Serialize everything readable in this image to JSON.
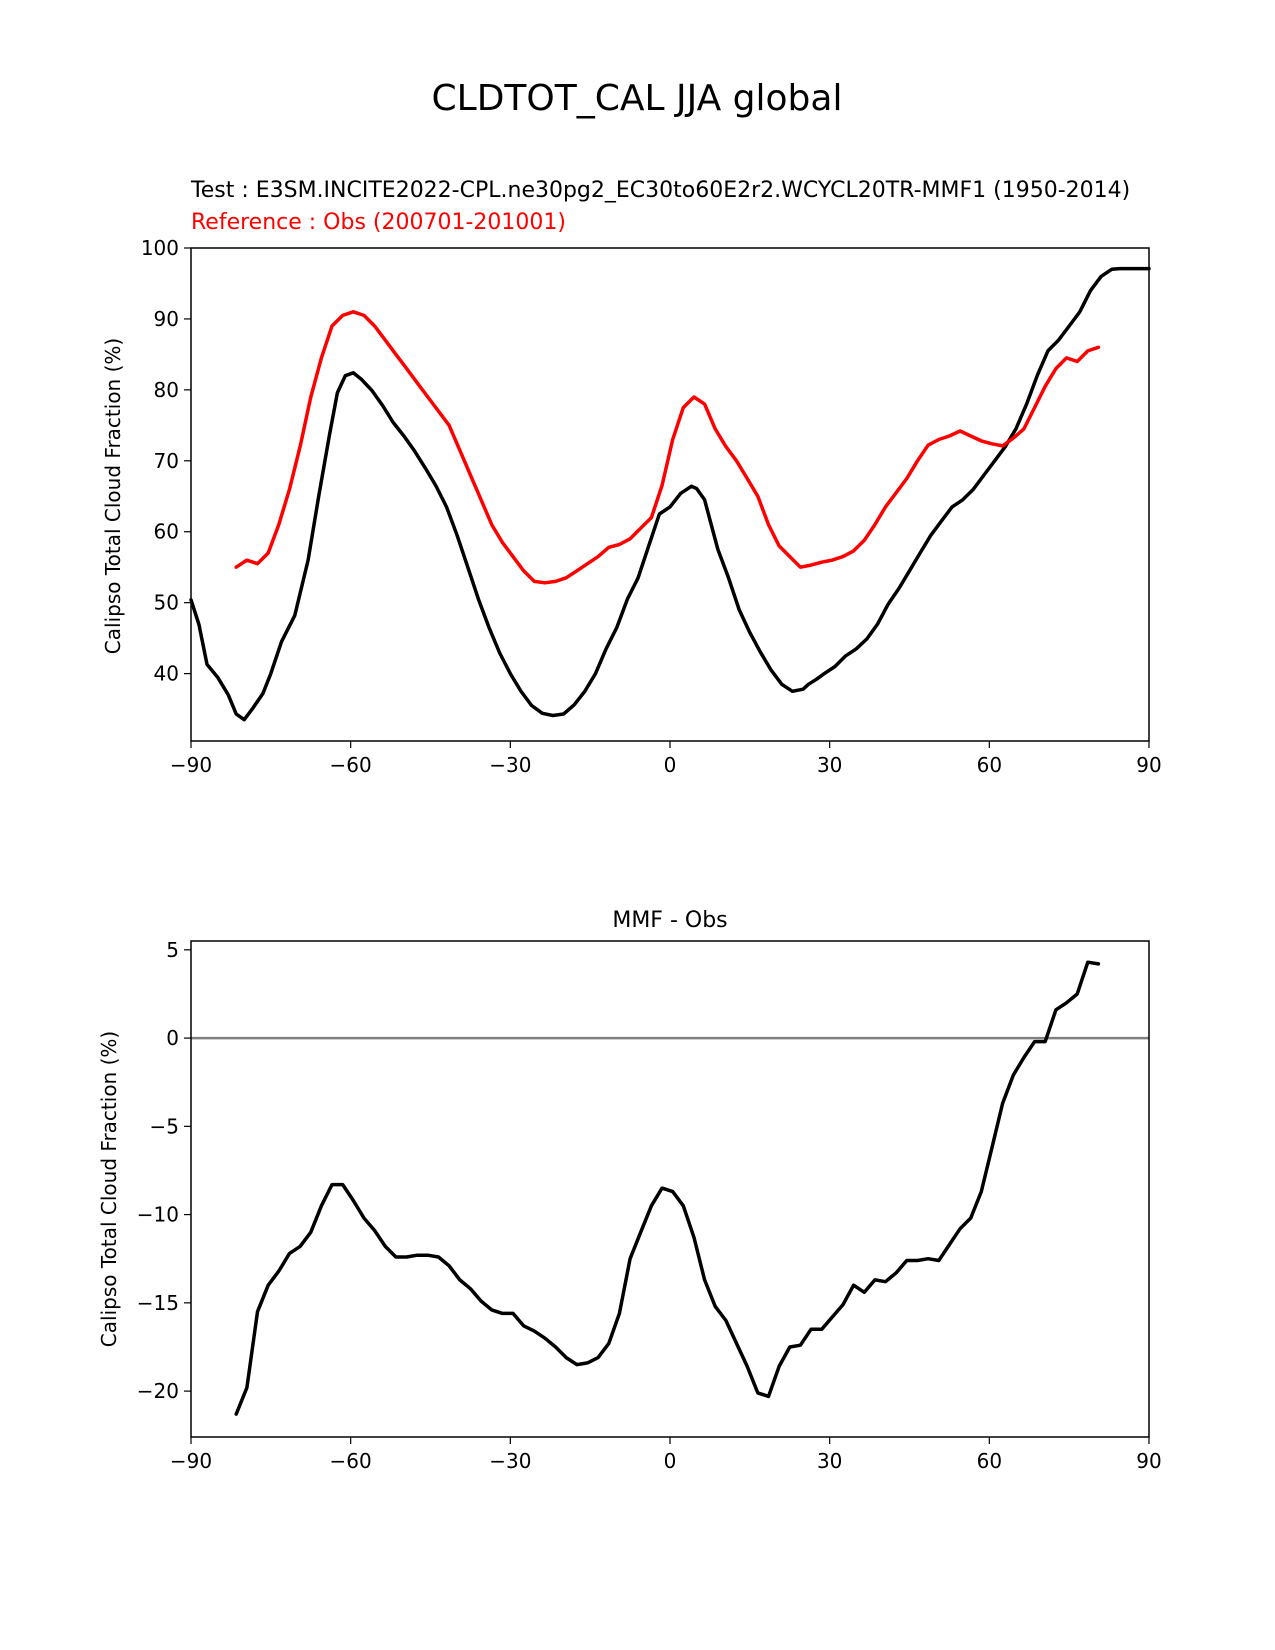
{
  "figure": {
    "suptitle": "CLDTOT_CAL JJA global"
  },
  "colors": {
    "test": "#000000",
    "reference": "#ff0000",
    "zero_line": "#808080",
    "axes": "#000000"
  },
  "chart_data": [
    {
      "type": "line",
      "title_test": "Test : E3SM.INCITE2022-CPL.ne30pg2_EC30to60E2r2.WCYCL20TR-MMF1 (1950-2014)",
      "title_reference": "Reference : Obs (200701-201001)",
      "xlabel": "",
      "ylabel": "Calipso Total Cloud Fraction (%)",
      "xlim": [
        -90,
        90
      ],
      "ylim": [
        30.5,
        100
      ],
      "xticks": [
        -90,
        -60,
        -30,
        0,
        30,
        60,
        90
      ],
      "xtick_labels": [
        "−90",
        "−60",
        "−30",
        "0",
        "30",
        "60",
        "90"
      ],
      "yticks": [
        40,
        50,
        60,
        70,
        80,
        90,
        100
      ],
      "ytick_labels": [
        "40",
        "50",
        "60",
        "70",
        "80",
        "90",
        "100"
      ],
      "series": [
        {
          "name": "Test",
          "color": "#000000",
          "x": [
            -90,
            -88.5,
            -87,
            -85,
            -83,
            -81.5,
            -80,
            -78.5,
            -76.5,
            -75,
            -73,
            -70.5,
            -68,
            -66,
            -64,
            -62.5,
            -61,
            -59.5,
            -58,
            -56,
            -54,
            -52,
            -50,
            -48,
            -46,
            -44,
            -42,
            -40,
            -38,
            -36,
            -34,
            -32,
            -30,
            -28,
            -26,
            -24,
            -22,
            -20,
            -18,
            -16,
            -14,
            -12,
            -10,
            -8,
            -6,
            -4,
            -2,
            0,
            2,
            4,
            5,
            6.5,
            7.5,
            9,
            11,
            13,
            15,
            17,
            19,
            21,
            23,
            25,
            26,
            27.5,
            29,
            31,
            33,
            35,
            37,
            39,
            41,
            43,
            45,
            47,
            49,
            51,
            53,
            55,
            57,
            59,
            61,
            63,
            65,
            67,
            69,
            71,
            73,
            75,
            77,
            79,
            81,
            83,
            84.5,
            86,
            87.5,
            89,
            90
          ],
          "y": [
            50.4,
            46.9,
            41.3,
            39.5,
            37.0,
            34.3,
            33.5,
            35.0,
            37.2,
            40.0,
            44.5,
            48.2,
            56.0,
            65.0,
            73.6,
            79.6,
            82.0,
            82.4,
            81.5,
            79.9,
            77.8,
            75.4,
            73.5,
            71.4,
            69.0,
            66.5,
            63.5,
            59.5,
            55.0,
            50.5,
            46.5,
            42.9,
            40.0,
            37.5,
            35.5,
            34.4,
            34.1,
            34.3,
            35.6,
            37.5,
            40.0,
            43.5,
            46.5,
            50.5,
            53.5,
            58.0,
            62.5,
            63.5,
            65.4,
            66.4,
            66.1,
            64.5,
            61.7,
            57.5,
            53.5,
            49.0,
            45.8,
            43.0,
            40.5,
            38.5,
            37.5,
            37.8,
            38.5,
            39.2,
            40.0,
            41.0,
            42.5,
            43.5,
            44.9,
            47.0,
            49.8,
            52.0,
            54.5,
            57.0,
            59.5,
            61.5,
            63.5,
            64.5,
            66.0,
            68.0,
            70.0,
            72.0,
            74.5,
            78.0,
            82.0,
            85.5,
            87.0,
            89.0,
            91.0,
            94.0,
            96.0,
            97.0,
            97.1,
            97.1,
            97.1,
            97.1,
            97.1
          ]
        },
        {
          "name": "Reference",
          "color": "#ff0000",
          "x": [
            -81.5,
            -79.5,
            -77.5,
            -75.5,
            -73.5,
            -71.5,
            -69.5,
            -67.5,
            -65.5,
            -63.5,
            -61.5,
            -59.5,
            -57.5,
            -55.5,
            -53.5,
            -51.5,
            -49.5,
            -47.5,
            -45.5,
            -43.5,
            -41.5,
            -39.5,
            -37.5,
            -35.5,
            -33.5,
            -31.5,
            -29.5,
            -27.5,
            -25.5,
            -23.5,
            -21.5,
            -19.5,
            -17.5,
            -15.5,
            -13.5,
            -11.5,
            -9.5,
            -7.5,
            -5.5,
            -3.5,
            -1.5,
            0.5,
            2.5,
            4.5,
            6.5,
            8.5,
            10.5,
            12.5,
            14.5,
            16.5,
            18.5,
            20.5,
            22.5,
            24.5,
            26.5,
            28.5,
            30.5,
            32.5,
            34.5,
            36.5,
            38.5,
            40.5,
            42.5,
            44.5,
            46.5,
            48.5,
            50.5,
            52.5,
            54.5,
            56.5,
            58.5,
            60.5,
            62.5,
            64.5,
            66.5,
            68.5,
            70.5,
            72.5,
            74.5,
            76.5,
            78.5,
            80.5
          ],
          "y": [
            55.0,
            56.0,
            55.5,
            57.0,
            61.0,
            66.0,
            72.0,
            79.0,
            84.5,
            89.0,
            90.5,
            91.0,
            90.5,
            89.0,
            87.0,
            85.0,
            83.0,
            81.0,
            79.0,
            77.0,
            75.0,
            71.5,
            68.0,
            64.5,
            61.0,
            58.5,
            56.5,
            54.5,
            53.0,
            52.8,
            53.0,
            53.5,
            54.5,
            55.5,
            56.5,
            57.8,
            58.2,
            59.0,
            60.5,
            62.0,
            66.5,
            73.0,
            77.5,
            79.0,
            78.0,
            74.5,
            72.0,
            70.0,
            67.5,
            65.0,
            61.0,
            58.0,
            56.5,
            55.0,
            55.3,
            55.7,
            56.0,
            56.5,
            57.3,
            58.8,
            61.0,
            63.5,
            65.5,
            67.5,
            70.0,
            72.2,
            73.0,
            73.5,
            74.2,
            73.5,
            72.8,
            72.4,
            72.1,
            73.2,
            74.5,
            77.5,
            80.5,
            83.0,
            84.5,
            84.0,
            85.5,
            86.0
          ]
        }
      ]
    },
    {
      "type": "line",
      "title": "MMF - Obs",
      "xlabel": "",
      "ylabel": "Calipso Total Cloud Fraction (%)",
      "xlim": [
        -90,
        90
      ],
      "ylim": [
        -22.6,
        5.5
      ],
      "xticks": [
        -90,
        -60,
        -30,
        0,
        30,
        60,
        90
      ],
      "xtick_labels": [
        "−90",
        "−60",
        "−30",
        "0",
        "30",
        "60",
        "90"
      ],
      "yticks": [
        5,
        0,
        -5,
        -10,
        -15,
        -20
      ],
      "ytick_labels": [
        "5",
        "0",
        "−5",
        "−10",
        "−15",
        "−20"
      ],
      "zero_line": 0,
      "series": [
        {
          "name": "MMF - Obs",
          "color": "#000000",
          "x": [
            -81.5,
            -79.5,
            -77.5,
            -75.5,
            -73.5,
            -71.5,
            -69.5,
            -67.5,
            -65.5,
            -63.5,
            -61.5,
            -59.5,
            -57.5,
            -55.5,
            -53.5,
            -51.5,
            -49.5,
            -47.5,
            -45.5,
            -43.5,
            -41.5,
            -39.5,
            -37.5,
            -35.5,
            -33.5,
            -31.5,
            -29.5,
            -27.5,
            -25.5,
            -23.5,
            -21.5,
            -19.5,
            -17.5,
            -15.5,
            -13.5,
            -11.5,
            -9.5,
            -7.5,
            -5.5,
            -3.5,
            -1.5,
            0.5,
            2.5,
            4.5,
            6.5,
            8.5,
            10.5,
            12.5,
            14.5,
            16.5,
            18.5,
            20.5,
            22.5,
            24.5,
            26.5,
            28.5,
            30.5,
            32.5,
            34.5,
            36.5,
            38.5,
            40.5,
            42.5,
            44.5,
            46.5,
            48.5,
            50.5,
            52.5,
            54.5,
            56.5,
            58.5,
            60.5,
            62.5,
            64.5,
            66.5,
            68.5,
            70.5,
            72.5,
            74.5,
            76.5,
            78.5,
            80.5
          ],
          "y": [
            -21.3,
            -19.8,
            -15.5,
            -14.0,
            -13.2,
            -12.2,
            -11.8,
            -11.0,
            -9.5,
            -8.3,
            -8.3,
            -9.2,
            -10.2,
            -10.9,
            -11.8,
            -12.4,
            -12.4,
            -12.3,
            -12.3,
            -12.4,
            -12.9,
            -13.7,
            -14.2,
            -14.9,
            -15.4,
            -15.6,
            -15.6,
            -16.3,
            -16.6,
            -17.0,
            -17.5,
            -18.1,
            -18.5,
            -18.4,
            -18.1,
            -17.3,
            -15.6,
            -12.5,
            -11.0,
            -9.5,
            -8.5,
            -8.7,
            -9.5,
            -11.3,
            -13.7,
            -15.2,
            -16.0,
            -17.3,
            -18.6,
            -20.1,
            -20.3,
            -18.6,
            -17.5,
            -17.4,
            -16.5,
            -16.5,
            -15.8,
            -15.1,
            -14.0,
            -14.4,
            -13.7,
            -13.8,
            -13.3,
            -12.6,
            -12.6,
            -12.5,
            -12.6,
            -11.7,
            -10.8,
            -10.2,
            -8.7,
            -6.2,
            -3.7,
            -2.1,
            -1.1,
            -0.2,
            -0.2,
            1.6,
            2.0,
            2.5,
            4.3,
            4.2
          ]
        }
      ]
    }
  ]
}
